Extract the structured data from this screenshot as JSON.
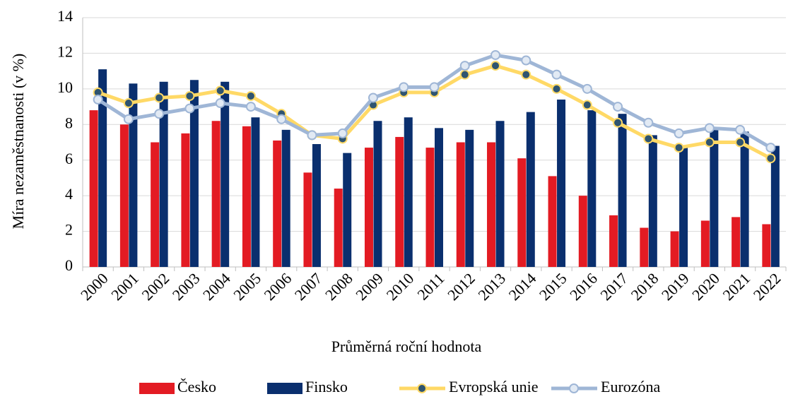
{
  "chart_data": {
    "type": "bar",
    "y_label": "Míra nezaměstnanosti (v %)",
    "x_label": "Průměrná roční hodnota",
    "categories": [
      "2000",
      "2001",
      "2002",
      "2003",
      "2004",
      "2005",
      "2006",
      "2007",
      "2008",
      "2009",
      "2010",
      "2011",
      "2012",
      "2013",
      "2014",
      "2015",
      "2016",
      "2017",
      "2018",
      "2019",
      "2020",
      "2021",
      "2022"
    ],
    "series": [
      {
        "name": "Česko",
        "kind": "bar",
        "color": "#e31b23",
        "values": [
          8.8,
          8.0,
          7.0,
          7.5,
          8.2,
          7.9,
          7.1,
          5.3,
          4.4,
          6.7,
          7.3,
          6.7,
          7.0,
          7.0,
          6.1,
          5.1,
          4.0,
          2.9,
          2.2,
          2.0,
          2.6,
          2.8,
          2.4
        ]
      },
      {
        "name": "Finsko",
        "kind": "bar",
        "color": "#0a2f6e",
        "values": [
          11.1,
          10.3,
          10.4,
          10.5,
          10.4,
          8.4,
          7.7,
          6.9,
          6.4,
          8.2,
          8.4,
          7.8,
          7.7,
          8.2,
          8.7,
          9.4,
          8.8,
          8.6,
          7.4,
          6.7,
          7.8,
          7.6,
          6.8
        ]
      },
      {
        "name": "Evropská unie",
        "kind": "line",
        "color": "#ffd966",
        "marker_color": "#2f5470",
        "values": [
          9.8,
          9.2,
          9.5,
          9.6,
          9.9,
          9.6,
          8.6,
          7.4,
          7.2,
          9.1,
          9.8,
          9.8,
          10.8,
          11.3,
          10.8,
          10.0,
          9.1,
          8.1,
          7.2,
          6.7,
          7.0,
          7.0,
          6.1
        ]
      },
      {
        "name": "Eurozóna",
        "kind": "line",
        "color": "#9fb6d6",
        "marker_color": "#e2eaf4",
        "values": [
          9.4,
          8.3,
          8.6,
          8.9,
          9.2,
          9.0,
          8.3,
          7.4,
          7.5,
          9.5,
          10.1,
          10.1,
          11.3,
          11.9,
          11.6,
          10.8,
          10.0,
          9.0,
          8.1,
          7.5,
          7.8,
          7.7,
          6.7
        ]
      }
    ],
    "ylim": [
      0,
      14
    ],
    "yticks": [
      0,
      2,
      4,
      6,
      8,
      10,
      12,
      14
    ],
    "grid": true,
    "legend": "bottom"
  }
}
